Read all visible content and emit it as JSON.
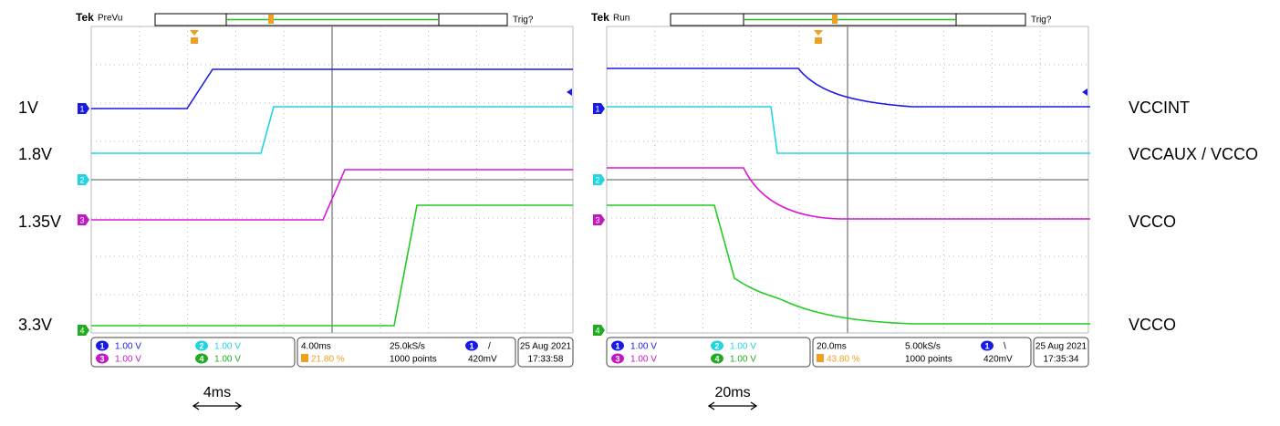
{
  "left_labels": [
    "1V",
    "1.8V",
    "1.35V",
    "3.3V"
  ],
  "right_labels": [
    "VCCINT",
    "VCCAUX / VCCO",
    "VCCO",
    "VCCO"
  ],
  "scopes": [
    {
      "brand": "Tek",
      "status": "PreVu",
      "trig": "Trig?",
      "channels": [
        {
          "label": "1",
          "scale": "1.00 V"
        },
        {
          "label": "2",
          "scale": "1.00 V"
        },
        {
          "label": "3",
          "scale": "1.00 V"
        },
        {
          "label": "4",
          "scale": "1.00 V"
        }
      ],
      "timebase": "4.00ms",
      "trigger_position": "21.80 %",
      "sample_rate": "25.0kS/s",
      "record_length": "1000 points",
      "trigger_channel": "1",
      "trigger_slope": "/",
      "trigger_level": "420mV",
      "date": "25 Aug 2021",
      "time": "17:33:58",
      "scale_note": "4ms"
    },
    {
      "brand": "Tek",
      "status": "Run",
      "trig": "Trig?",
      "channels": [
        {
          "label": "1",
          "scale": "1.00 V"
        },
        {
          "label": "2",
          "scale": "1.00 V"
        },
        {
          "label": "3",
          "scale": "1.00 V"
        },
        {
          "label": "4",
          "scale": "1.00 V"
        }
      ],
      "timebase": "20.0ms",
      "trigger_position": "43.80 %",
      "sample_rate": "5.00kS/s",
      "record_length": "1000 points",
      "trigger_channel": "1",
      "trigger_slope": "\\",
      "trigger_level": "420mV",
      "date": "25 Aug 2021",
      "time": "17:35:34",
      "scale_note": "20ms"
    }
  ]
}
